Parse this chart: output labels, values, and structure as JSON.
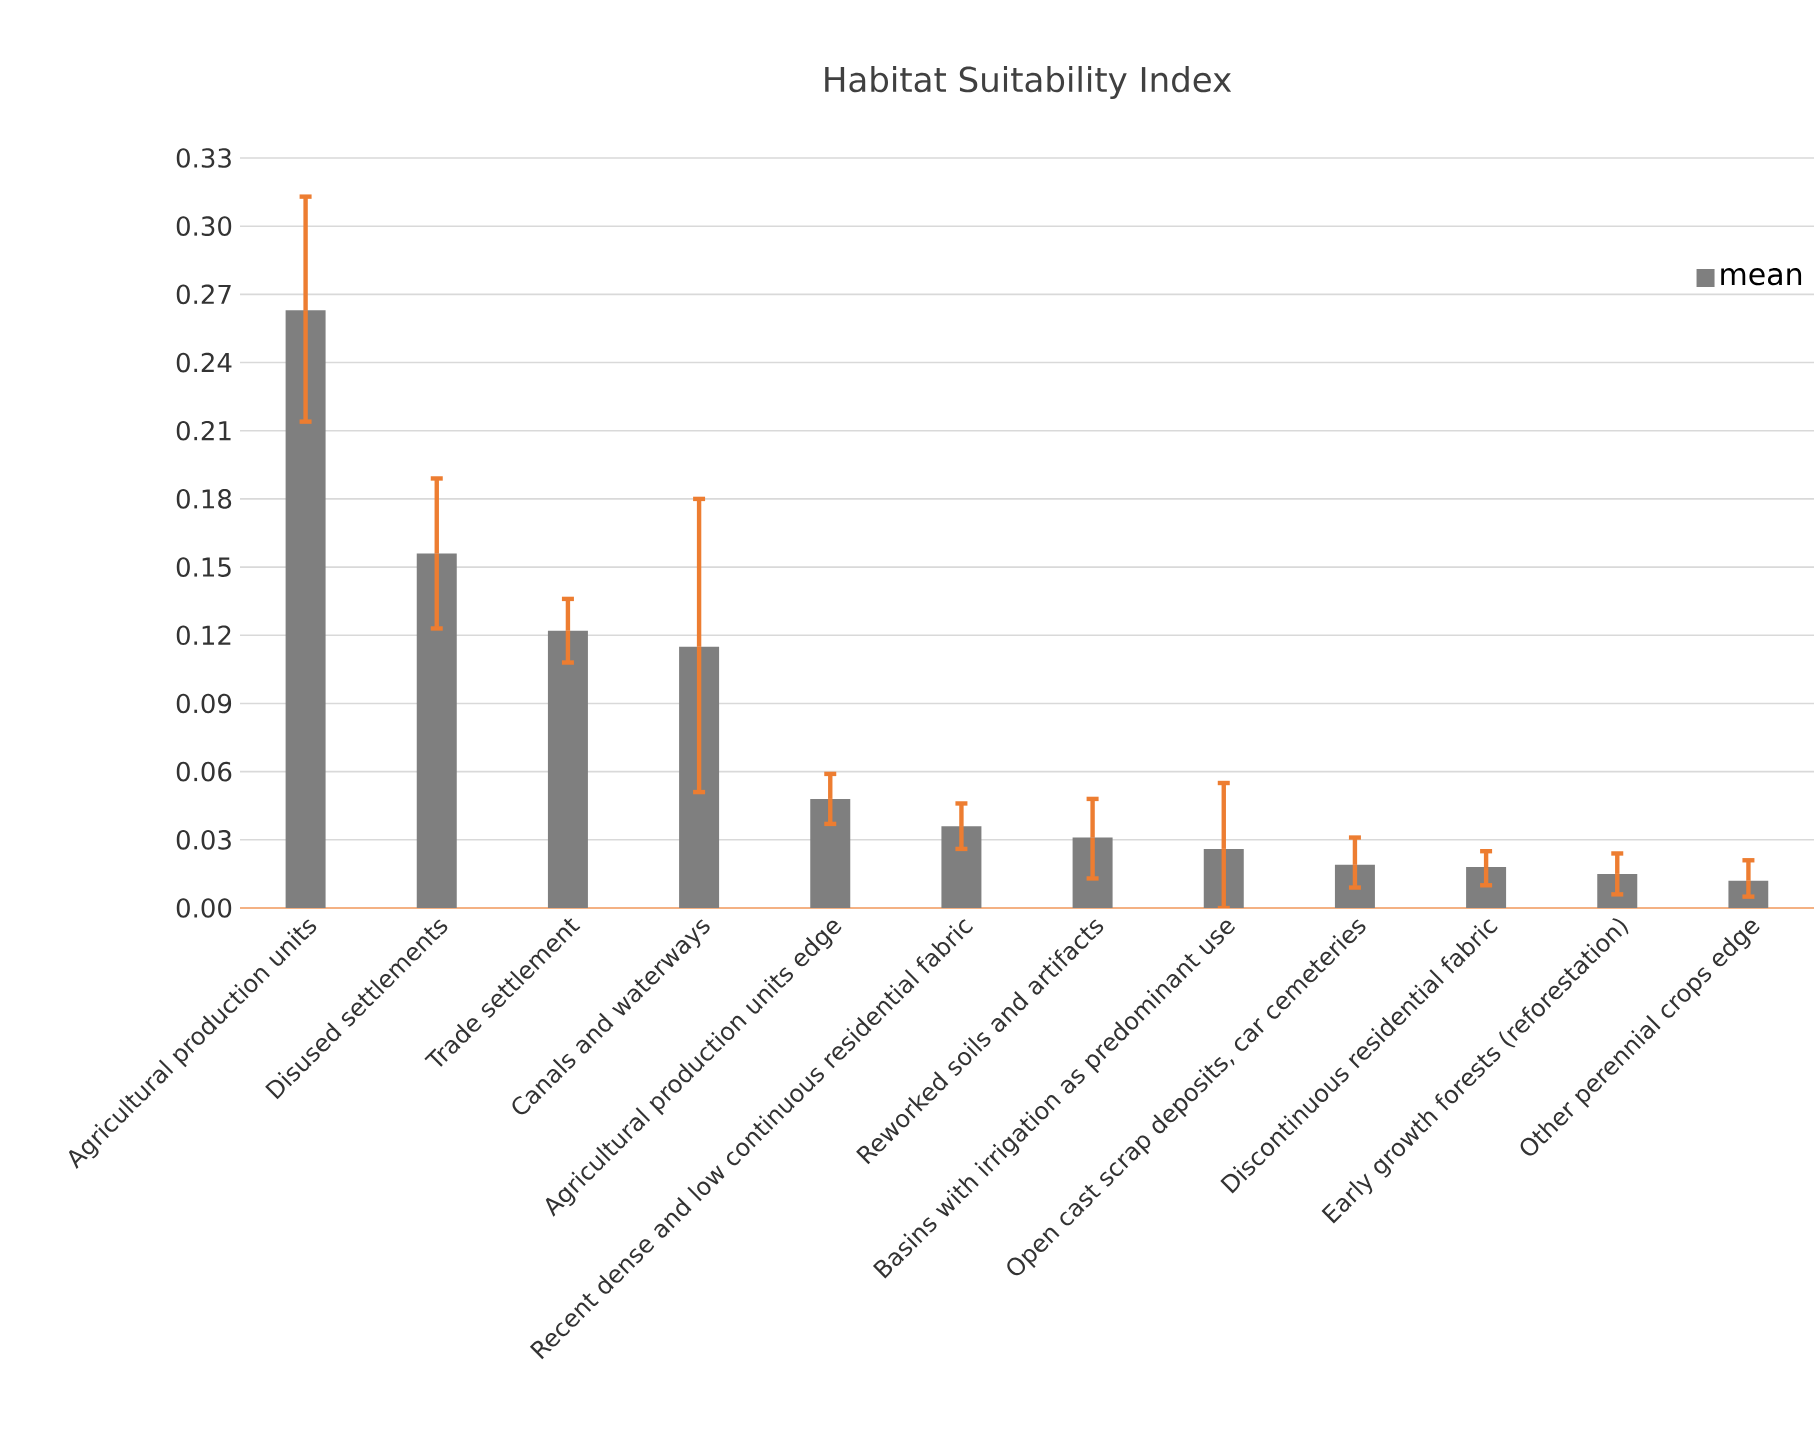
{
  "chart_data": {
    "type": "bar",
    "title": "Habitat Suitability Index",
    "categories": [
      "Agricultural production units",
      "Disused settlements",
      "Trade settlement",
      "Canals and waterways",
      "Agricultural production units edge",
      "Recent dense and low continuous residential fabric",
      "Reworked soils and artifacts",
      "Basins with irrigation as predominant use",
      "Open cast scrap deposits, car cemeteries",
      "Discontinuous residential fabric",
      "Early growth forests (reforestation)",
      "Other perennial crops edge"
    ],
    "series": [
      {
        "name": "mean",
        "color": "#7f7f7f",
        "values": [
          0.263,
          0.156,
          0.122,
          0.115,
          0.048,
          0.036,
          0.031,
          0.026,
          0.019,
          0.018,
          0.015,
          0.012
        ],
        "errors": [
          [
            0.214,
            0.313
          ],
          [
            0.123,
            0.189
          ],
          [
            0.108,
            0.136
          ],
          [
            0.051,
            0.18
          ],
          [
            0.037,
            0.059
          ],
          [
            0.026,
            0.046
          ],
          [
            0.013,
            0.048
          ],
          [
            0.0,
            0.055
          ],
          [
            0.009,
            0.031
          ],
          [
            0.01,
            0.025
          ],
          [
            0.006,
            0.024
          ],
          [
            0.005,
            0.021
          ]
        ]
      }
    ],
    "ylim": [
      0,
      0.33
    ],
    "yticks": [
      {
        "value": 0,
        "label": "0.00"
      },
      {
        "value": 0.03,
        "label": "0.03"
      },
      {
        "value": 0.06,
        "label": "0.06"
      },
      {
        "value": 0.09,
        "label": "0.09"
      },
      {
        "value": 0.12,
        "label": "0.12"
      },
      {
        "value": 0.15,
        "label": "0.15"
      },
      {
        "value": 0.18,
        "label": "0.18"
      },
      {
        "value": 0.21,
        "label": "0.21"
      },
      {
        "value": 0.24,
        "label": "0.24"
      },
      {
        "value": 0.27,
        "label": "0.27"
      },
      {
        "value": 0.3,
        "label": "0.30"
      },
      {
        "value": 0.33,
        "label": "0.33"
      }
    ],
    "grid": "y",
    "legend": "top right"
  }
}
